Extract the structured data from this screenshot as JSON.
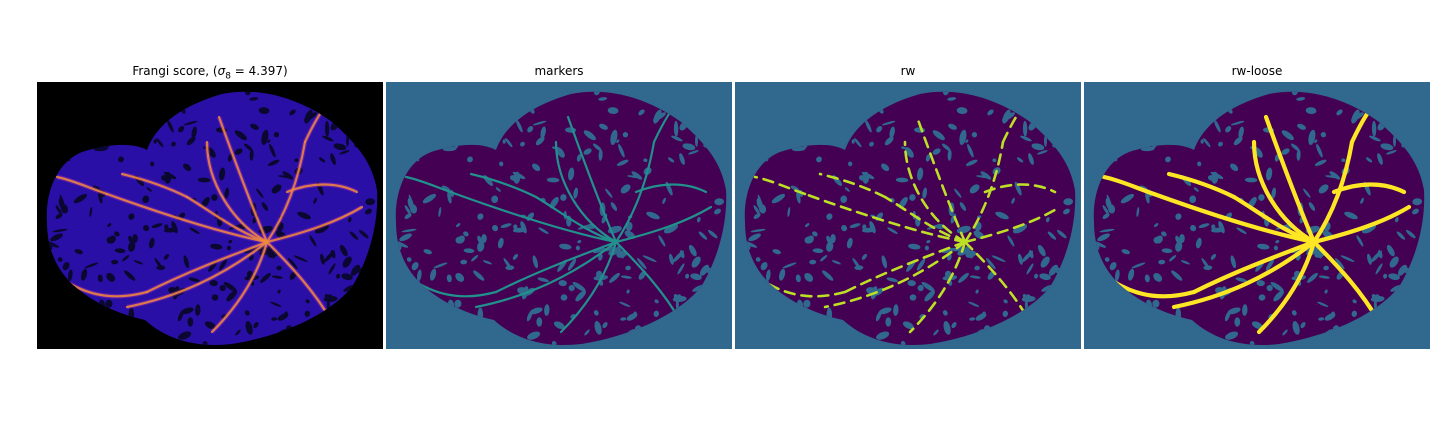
{
  "figure": {
    "panels": [
      {
        "title_prefix": "Frangi score, (",
        "title_symbol": "σ",
        "title_subscript": "8",
        "title_suffix": " = 4.397)",
        "background_color": "#000000",
        "leaf_color": "#2a0fa6",
        "vessel_color": "#f08a3a"
      },
      {
        "title": "markers",
        "background_color": "#31688e",
        "leaf_color": "#440154",
        "vessel_color": "#21918c"
      },
      {
        "title": "rw",
        "background_color": "#31688e",
        "leaf_color": "#440154",
        "vessel_color": "#bddf26"
      },
      {
        "title": "rw-loose",
        "background_color": "#31688e",
        "leaf_color": "#440154",
        "vessel_color": "#fde725"
      }
    ]
  }
}
